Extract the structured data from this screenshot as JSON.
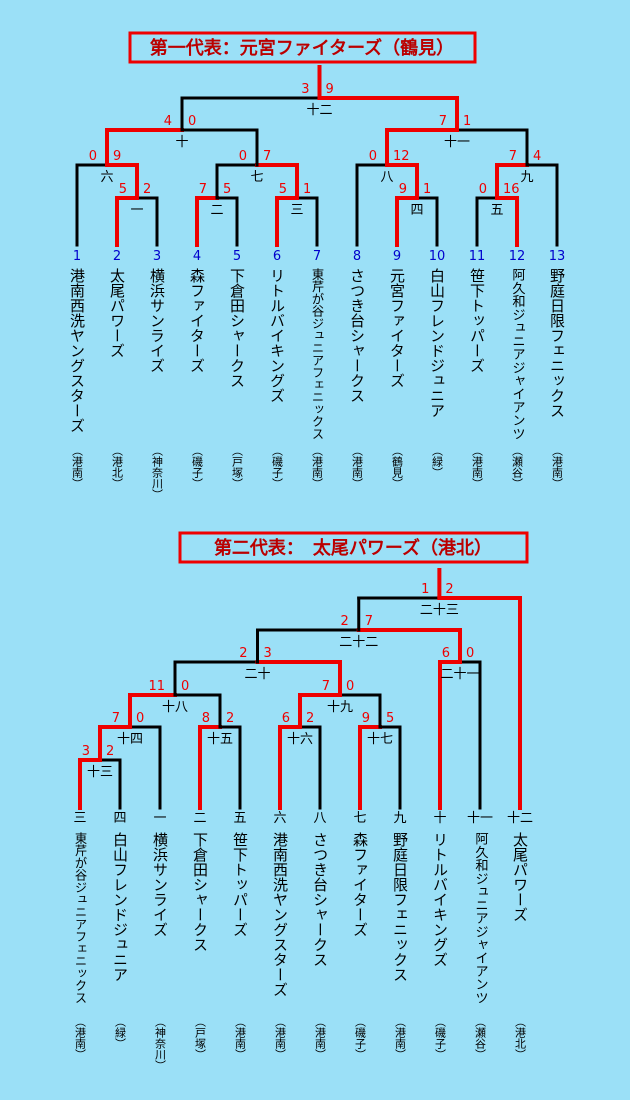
{
  "bracket1": {
    "title": "第一代表：元宮ファイターズ（鶴見）",
    "teams": [
      {
        "seed": 1,
        "name": "港南西洗ヤングスターズ",
        "area": "（港南）"
      },
      {
        "seed": 2,
        "name": "太尾パワーズ",
        "area": "（港北）"
      },
      {
        "seed": 3,
        "name": "横浜サンライズ",
        "area": "（神奈川）"
      },
      {
        "seed": 4,
        "name": "森ファイターズ",
        "area": "（磯子）"
      },
      {
        "seed": 5,
        "name": "下倉田シャークス",
        "area": "（戸塚）"
      },
      {
        "seed": 6,
        "name": "リトルバイキングズ",
        "area": "（磯子）"
      },
      {
        "seed": 7,
        "name": "東芹が谷ジュニアフェニックス",
        "area": "（港南）"
      },
      {
        "seed": 8,
        "name": "さつき台シャークス",
        "area": "（港南）"
      },
      {
        "seed": 9,
        "name": "元宮ファイターズ",
        "area": "（鶴見）"
      },
      {
        "seed": 10,
        "name": "白山フレンドジュニア",
        "area": "（緑）"
      },
      {
        "seed": 11,
        "name": "笹下トッパーズ",
        "area": "（港南）"
      },
      {
        "seed": 12,
        "name": "阿久和ジュニアジャイアンツ",
        "area": "（瀬谷）"
      },
      {
        "seed": 13,
        "name": "野庭日限フェニックス",
        "area": "（港南）"
      }
    ],
    "matches": [
      {
        "label": "一",
        "scores": [
          5,
          2
        ]
      },
      {
        "label": "二",
        "scores": [
          7,
          5
        ]
      },
      {
        "label": "三",
        "scores": [
          5,
          1
        ]
      },
      {
        "label": "四",
        "scores": [
          9,
          1
        ]
      },
      {
        "label": "五",
        "scores": [
          0,
          16
        ]
      },
      {
        "label": "六",
        "scores": [
          0,
          9
        ]
      },
      {
        "label": "七",
        "scores": [
          0,
          7
        ]
      },
      {
        "label": "八",
        "scores": [
          0,
          12
        ]
      },
      {
        "label": "九",
        "scores": [
          7,
          4
        ]
      },
      {
        "label": "十",
        "scores": [
          4,
          0
        ]
      },
      {
        "label": "十一",
        "scores": [
          7,
          1
        ]
      },
      {
        "label": "十二",
        "scores": [
          3,
          9
        ]
      }
    ]
  },
  "bracket2": {
    "title": "第二代表：　太尾パワーズ（港北）",
    "teams": [
      {
        "seed": "三",
        "name": "東芹が谷ジュニアフェニックス",
        "area": "（港南）"
      },
      {
        "seed": "四",
        "name": "白山フレンドジュニア",
        "area": "（緑）"
      },
      {
        "seed": "一",
        "name": "横浜サンライズ",
        "area": "（神奈川）"
      },
      {
        "seed": "二",
        "name": "下倉田シャークス",
        "area": "（戸塚）"
      },
      {
        "seed": "五",
        "name": "笹下トッパーズ",
        "area": "（港南）"
      },
      {
        "seed": "六",
        "name": "港南西洗ヤングスターズ",
        "area": "（港南）"
      },
      {
        "seed": "八",
        "name": "さつき台シャークス",
        "area": "（港南）"
      },
      {
        "seed": "七",
        "name": "森ファイターズ",
        "area": "（磯子）"
      },
      {
        "seed": "九",
        "name": "野庭日限フェニックス",
        "area": "（港南）"
      },
      {
        "seed": "十",
        "name": "リトルバイキングズ",
        "area": "（磯子）"
      },
      {
        "seed": "十一",
        "name": "阿久和ジュニアジャイアンツ",
        "area": "（瀬谷）"
      },
      {
        "seed": "十二",
        "name": "太尾パワーズ",
        "area": "（港北）"
      }
    ],
    "matches": [
      {
        "label": "十三",
        "scores": [
          3,
          2
        ]
      },
      {
        "label": "十四",
        "scores": [
          7,
          0
        ]
      },
      {
        "label": "十五",
        "scores": [
          8,
          2
        ]
      },
      {
        "label": "十六",
        "scores": [
          6,
          2
        ]
      },
      {
        "label": "十七",
        "scores": [
          9,
          5
        ]
      },
      {
        "label": "十八",
        "scores": [
          11,
          0
        ]
      },
      {
        "label": "十九",
        "scores": [
          7,
          0
        ]
      },
      {
        "label": "二十",
        "scores": [
          2,
          3
        ]
      },
      {
        "label": "二十一",
        "scores": [
          6,
          0
        ]
      },
      {
        "label": "二十二",
        "scores": [
          2,
          7
        ]
      },
      {
        "label": "二十三",
        "scores": [
          1,
          2
        ]
      }
    ]
  }
}
